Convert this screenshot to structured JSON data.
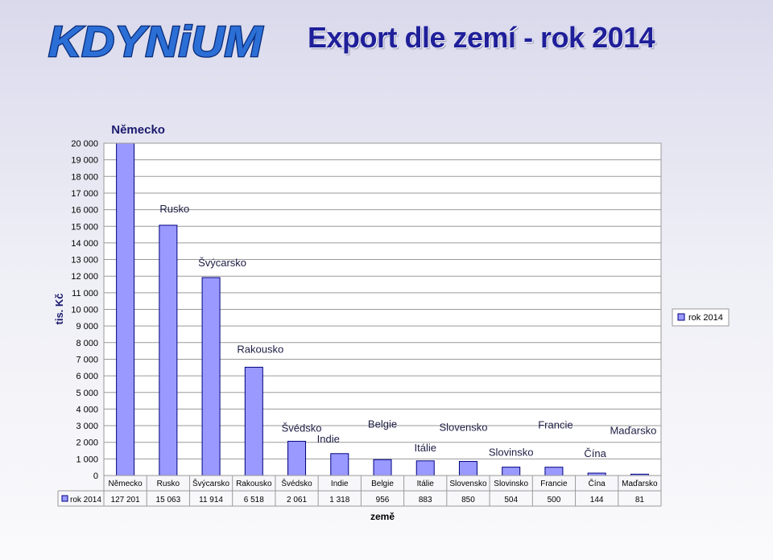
{
  "header": {
    "title": "Export  dle  zemí - rok 2014",
    "logo_text": "KDYNiUM"
  },
  "chart_data": {
    "type": "bar",
    "title": "Export  dle  zemí - rok 2014",
    "xlabel": "země",
    "ylabel": "tis. Kč",
    "ylim": [
      0,
      20000
    ],
    "yticks": [
      "0",
      "1 000",
      "2 000",
      "3 000",
      "4 000",
      "5 000",
      "6 000",
      "7 000",
      "8 000",
      "9 000",
      "10 000",
      "11 000",
      "12 000",
      "13 000",
      "14 000",
      "15 000",
      "16 000",
      "17 000",
      "18 000",
      "19 000",
      "20 000"
    ],
    "categories": [
      "Německo",
      "Rusko",
      "Švýcarsko",
      "Rakousko",
      "Švédsko",
      "Indie",
      "Belgie",
      "Itálie",
      "Slovensko",
      "Slovinsko",
      "Francie",
      "Čína",
      "Maďarsko"
    ],
    "series": [
      {
        "name": "rok 2014",
        "values": [
          127201,
          15063,
          11914,
          6518,
          2061,
          1318,
          956,
          883,
          850,
          504,
          500,
          144,
          81
        ],
        "value_labels": [
          "127 201",
          "15 063",
          "11 914",
          "6 518",
          "2 061",
          "1 318",
          "956",
          "883",
          "850",
          "504",
          "500",
          "144",
          "81"
        ]
      }
    ],
    "legend": "right",
    "grid": true,
    "data_table": true,
    "bar_color": "#9999ff"
  }
}
